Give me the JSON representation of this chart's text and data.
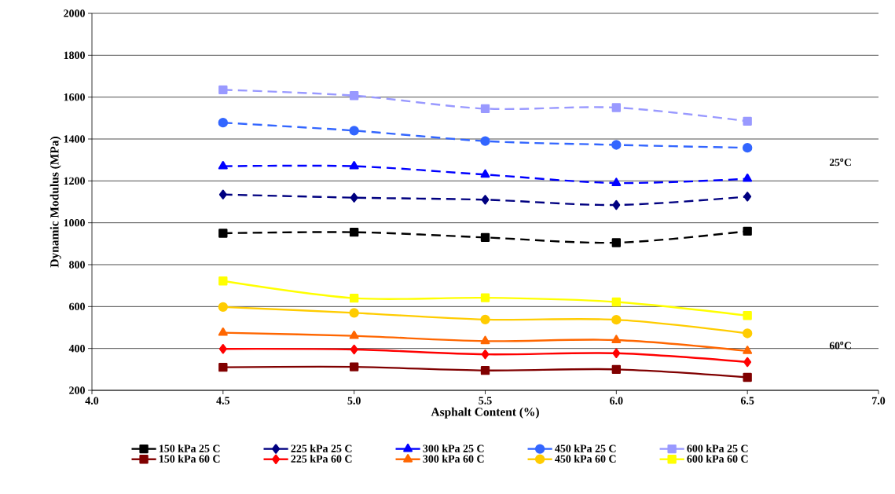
{
  "chart_data": {
    "type": "line",
    "xlabel": "Asphalt Content (%)",
    "ylabel": "Dynamic Modulus (MPa)",
    "x": [
      4.5,
      5.0,
      5.5,
      6.0,
      6.5
    ],
    "xlim": [
      4.0,
      7.0
    ],
    "xticks": [
      {
        "value": 4.0,
        "label": "4.0"
      },
      {
        "value": 4.5,
        "label": "4.5"
      },
      {
        "value": 5.0,
        "label": "5.0"
      },
      {
        "value": 5.5,
        "label": "5.5"
      },
      {
        "value": 6.0,
        "label": "6.0"
      },
      {
        "value": 6.5,
        "label": "6.5"
      },
      {
        "value": 7.0,
        "label": "7.0"
      }
    ],
    "ylim": [
      200,
      2000
    ],
    "yticks": [
      200,
      400,
      600,
      800,
      1000,
      1200,
      1400,
      1600,
      1800,
      2000
    ],
    "grid": "y",
    "legend": "bottom",
    "annotations": [
      "25$^{o}$C",
      "60$^{o}$C"
    ],
    "series": [
      {
        "name": "150 kPa 25 C",
        "color": "#000000",
        "marker": "square",
        "line_style": "dashed",
        "values": [
          950,
          955,
          930,
          905,
          960
        ]
      },
      {
        "name": "225 kPa 25 C",
        "color": "#000080",
        "marker": "diamond",
        "line_style": "dashed",
        "values": [
          1135,
          1120,
          1110,
          1085,
          1125
        ]
      },
      {
        "name": "300 kPa 25 C",
        "color": "#0000ff",
        "marker": "triangle",
        "line_style": "dashed",
        "values": [
          1270,
          1270,
          1230,
          1190,
          1210
        ]
      },
      {
        "name": "450 kPa 25 C",
        "color": "#3366ff",
        "marker": "circle",
        "line_style": "dashed",
        "values": [
          1478,
          1440,
          1390,
          1372,
          1358
        ]
      },
      {
        "name": "600 kPa 25 C",
        "color": "#9999ff",
        "marker": "square",
        "line_style": "dashed",
        "values": [
          1635,
          1607,
          1545,
          1550,
          1485
        ]
      },
      {
        "name": "150 kPa 60 C",
        "color": "#800000",
        "marker": "square",
        "line_style": "solid",
        "values": [
          310,
          312,
          295,
          300,
          262
        ]
      },
      {
        "name": "225 kPa 60 C",
        "color": "#ff0000",
        "marker": "diamond",
        "line_style": "solid",
        "values": [
          398,
          395,
          372,
          377,
          335
        ]
      },
      {
        "name": "300 kPa 60 C",
        "color": "#ff6600",
        "marker": "triangle",
        "line_style": "solid",
        "values": [
          475,
          460,
          435,
          440,
          388
        ]
      },
      {
        "name": "450 kPa 60 C",
        "color": "#ffcc00",
        "marker": "circle",
        "line_style": "solid",
        "values": [
          598,
          570,
          538,
          537,
          472
        ]
      },
      {
        "name": "600 kPa 60 C",
        "color": "#ffff00",
        "marker": "square",
        "line_style": "solid",
        "values": [
          722,
          640,
          642,
          622,
          557
        ]
      }
    ]
  }
}
